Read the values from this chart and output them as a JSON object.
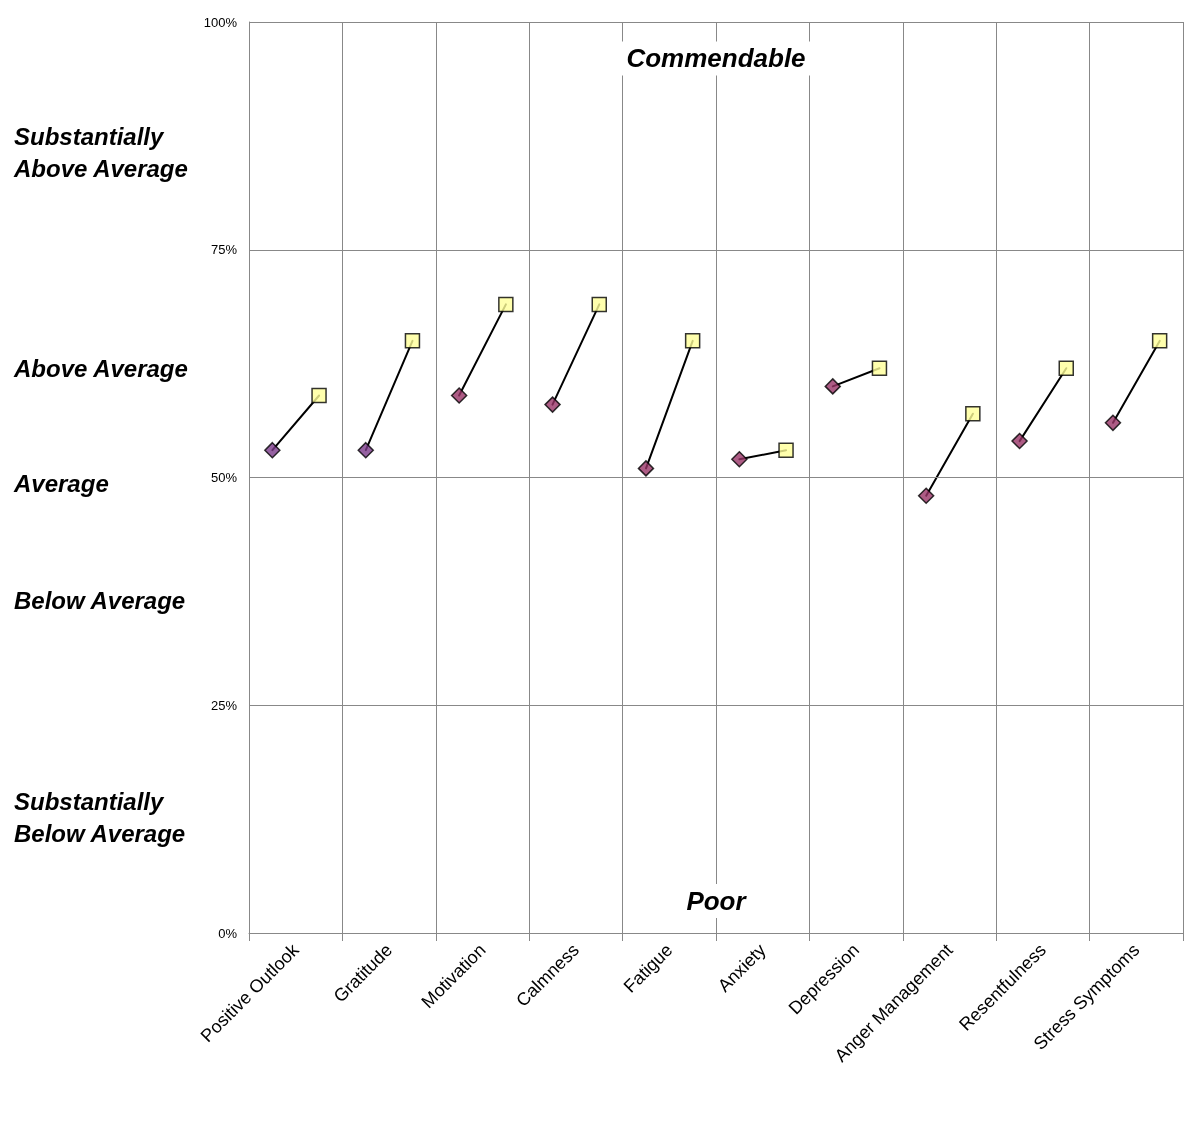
{
  "chart_data": {
    "type": "line",
    "categories": [
      "Positive Outlook",
      "Gratitude",
      "Motivation",
      "Calmness",
      "Fatigue",
      "Anxiety",
      "Depression",
      "Anger Management",
      "Resentfulness",
      "Stress Symptoms"
    ],
    "series": [
      {
        "type": "scatter",
        "marker": "diamond",
        "color": "#993366",
        "colors": [
          "#7a3a8a",
          "#7a3a8a",
          "#993366",
          "#993366",
          "#993366",
          "#993366",
          "#993366",
          "#993366",
          "#993366",
          "#993366"
        ],
        "values": [
          53,
          53,
          59,
          58,
          51,
          52,
          60,
          48,
          54,
          56
        ]
      },
      {
        "type": "scatter",
        "marker": "square",
        "color": "#ffff99",
        "values": [
          59,
          65,
          69,
          69,
          65,
          53,
          62,
          57,
          62,
          65
        ]
      }
    ],
    "ylim": [
      0,
      100
    ],
    "yticks": [
      {
        "value": 0,
        "label": "0%"
      },
      {
        "value": 25,
        "label": "25%"
      },
      {
        "value": 50,
        "label": "50%"
      },
      {
        "value": 75,
        "label": "75%"
      },
      {
        "value": 100,
        "label": "100%"
      }
    ],
    "grid": true,
    "annotations": [
      "Substantially Above Average",
      "Above Average",
      "Average",
      "Below Average",
      "Substantially Below Average",
      "Commendable",
      "Poor"
    ]
  }
}
